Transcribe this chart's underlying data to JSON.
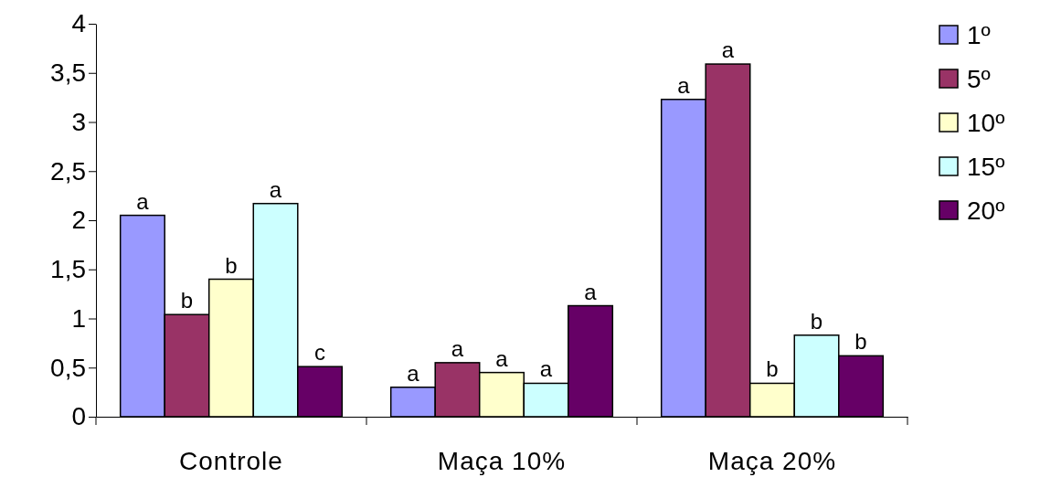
{
  "chart_data": {
    "type": "bar",
    "categories": [
      "Controle",
      "Maça 10%",
      "Maça 20%"
    ],
    "series": [
      {
        "name": "1º",
        "color": "#9999ff",
        "values": [
          2.05,
          0.3,
          3.23
        ],
        "value_labels": [
          "a",
          "a",
          "a"
        ]
      },
      {
        "name": "5º",
        "color": "#993366",
        "values": [
          1.04,
          0.55,
          3.59
        ],
        "value_labels": [
          "b",
          "a",
          "a"
        ]
      },
      {
        "name": "10º",
        "color": "#ffffcc",
        "values": [
          1.4,
          0.45,
          0.34
        ],
        "value_labels": [
          "b",
          "a",
          "b"
        ]
      },
      {
        "name": "15º",
        "color": "#ccffff",
        "values": [
          2.17,
          0.34,
          0.83
        ],
        "value_labels": [
          "a",
          "a",
          "b"
        ]
      },
      {
        "name": "20º",
        "color": "#660066",
        "values": [
          0.51,
          1.13,
          0.62
        ],
        "value_labels": [
          "c",
          "a",
          "b"
        ]
      }
    ],
    "ylim": [
      0,
      4
    ],
    "yticks": [
      0,
      {
        "value": 0.5,
        "label": "0,5"
      },
      1,
      {
        "value": 1.5,
        "label": "1,5"
      },
      2,
      {
        "value": 2.5,
        "label": "2,5"
      },
      3,
      {
        "value": 3.5,
        "label": "3,5"
      },
      4
    ],
    "grid": false,
    "legend": "top right"
  }
}
